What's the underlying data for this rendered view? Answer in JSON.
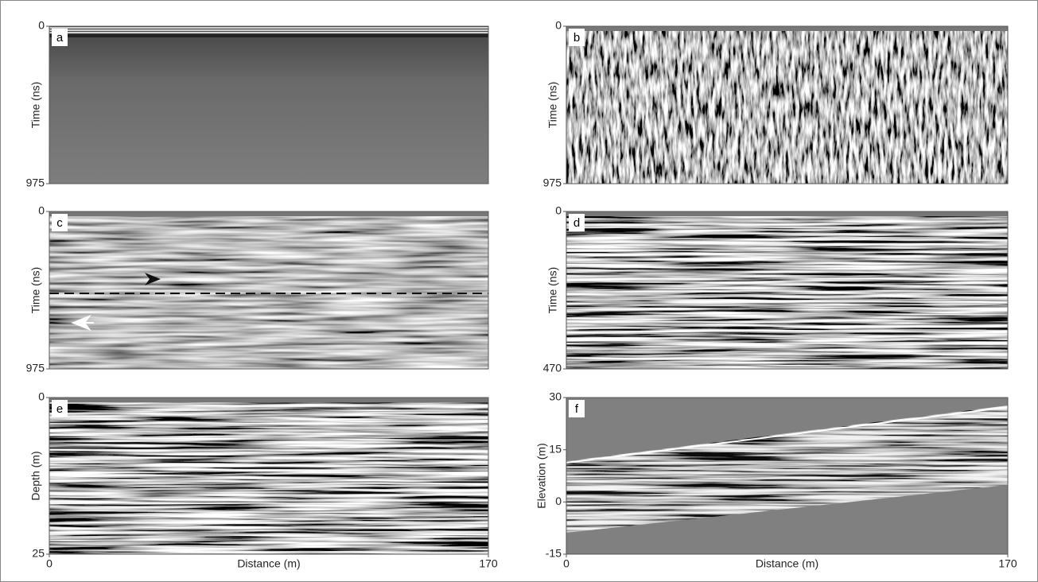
{
  "chart_data": [
    {
      "type": "image",
      "panel_label": "a",
      "ylabel": "Time (ns)",
      "ylim": [
        975,
        0
      ],
      "yticks": [
        0,
        975
      ]
    },
    {
      "type": "image",
      "panel_label": "b",
      "ylabel": "Time (ns)",
      "ylim": [
        975,
        0
      ],
      "yticks": [
        0,
        975
      ]
    },
    {
      "type": "image",
      "panel_label": "c",
      "ylabel": "Time (ns)",
      "ylim": [
        975,
        0
      ],
      "yticks": [
        0,
        975
      ]
    },
    {
      "type": "image",
      "panel_label": "d",
      "ylabel": "Time (ns)",
      "ylim": [
        470,
        0
      ],
      "yticks": [
        0,
        470
      ]
    },
    {
      "type": "image",
      "panel_label": "e",
      "ylabel": "Depth (m)",
      "ylim": [
        25,
        0
      ],
      "yticks": [
        0,
        25
      ],
      "xlabel": "Distance (m)",
      "xlim": [
        0,
        170
      ],
      "xticks": [
        0,
        170
      ]
    },
    {
      "type": "image",
      "panel_label": "f",
      "ylabel": "Elevation (m)",
      "ylim": [
        -15,
        30
      ],
      "yticks": [
        -15,
        0,
        15,
        30
      ],
      "xlabel": "Distance (m)",
      "xlim": [
        0,
        170
      ],
      "xticks": [
        0,
        170
      ]
    }
  ]
}
